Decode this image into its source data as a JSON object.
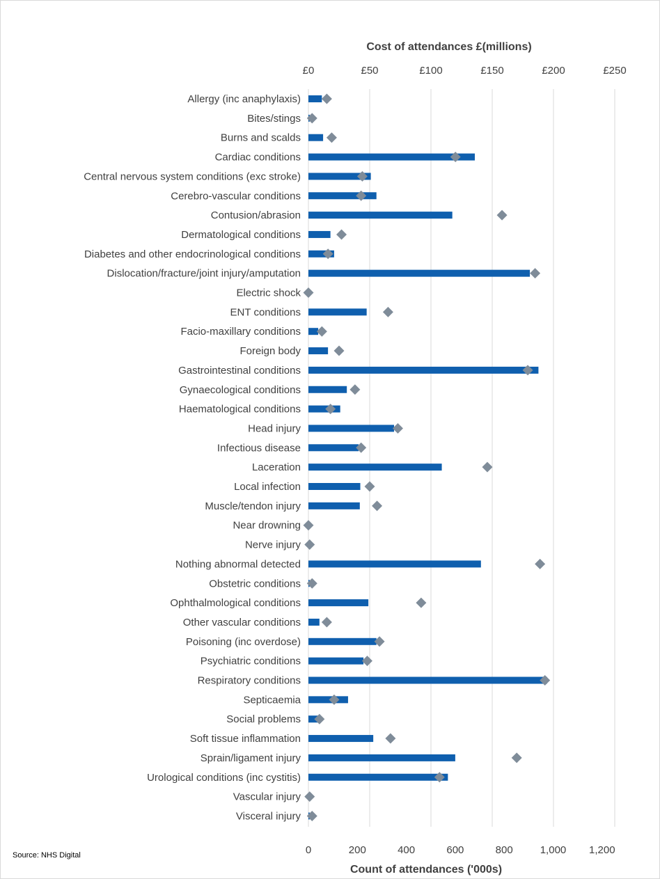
{
  "chart_data": {
    "type": "bar",
    "orientation": "horizontal",
    "top_axis_title": "Cost of attendances £(millions)",
    "bottom_axis_title": "Count of attendances ('000s)",
    "top_ticks": [
      "£0",
      "£50",
      "£100",
      "£150",
      "£200",
      "£250"
    ],
    "top_range": [
      0,
      250
    ],
    "bottom_ticks": [
      "0",
      "200",
      "400",
      "600",
      "800",
      "1,000",
      "1,200"
    ],
    "bottom_range": [
      0,
      1200
    ],
    "source": "Source: NHS Digital",
    "colors": {
      "bar": "#0f5fae",
      "marker": "#7f8c99",
      "grid": "#d9d9d9"
    },
    "categories": [
      "Allergy (inc anaphylaxis)",
      "Bites/stings",
      "Burns and scalds",
      "Cardiac conditions",
      "Central nervous system conditions (exc stroke)",
      "Cerebro-vascular conditions",
      "Contusion/abrasion",
      "Dermatological conditions",
      "Diabetes and other endocrinological conditions",
      "Dislocation/fracture/joint injury/amputation",
      "Electric shock",
      "ENT conditions",
      "Facio-maxillary conditions",
      "Foreign body",
      "Gastrointestinal conditions",
      "Gynaecological conditions",
      "Haematological conditions",
      "Head injury",
      "Infectious disease",
      "Laceration",
      "Local infection",
      "Muscle/tendon injury",
      "Near drowning",
      "Nerve injury",
      "Nothing abnormal detected",
      "Obstetric conditions",
      "Ophthalmological  conditions",
      "Other vascular conditions",
      "Poisoning (inc overdose)",
      "Psychiatric conditions",
      "Respiratory conditions",
      "Septicaemia",
      "Social problems",
      "Soft tissue inflammation",
      "Sprain/ligament injury",
      "Urological conditions (inc cystitis)",
      "Vascular injury",
      "Visceral injury"
    ],
    "series": [
      {
        "name": "Count of attendances ('000s)",
        "kind": "bar",
        "axis": "bottom",
        "values": [
          55,
          5,
          60,
          680,
          255,
          278,
          588,
          90,
          105,
          905,
          1,
          238,
          40,
          80,
          940,
          157,
          130,
          350,
          205,
          545,
          212,
          210,
          1,
          1,
          705,
          5,
          245,
          45,
          278,
          225,
          975,
          162,
          40,
          265,
          600,
          570,
          1,
          5
        ]
      },
      {
        "name": "Cost of attendances £(millions)",
        "kind": "marker",
        "axis": "top",
        "values": [
          15,
          3,
          19,
          120,
          44,
          43,
          158,
          27,
          16,
          185,
          0,
          65,
          11,
          25,
          179,
          38,
          18,
          73,
          43,
          146,
          50,
          56,
          0,
          1,
          189,
          3,
          92,
          15,
          58,
          48,
          193,
          21,
          9,
          67,
          170,
          107,
          1,
          3
        ]
      }
    ]
  }
}
